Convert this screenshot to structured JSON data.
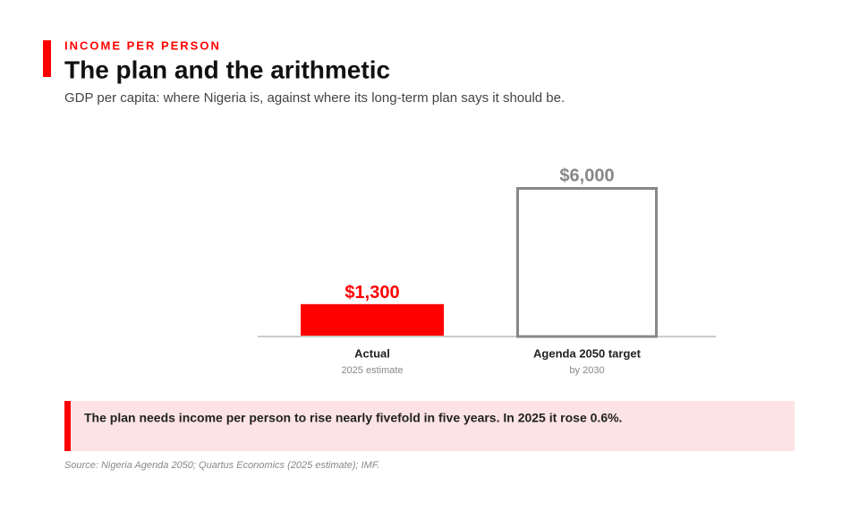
{
  "chart_data": {
    "type": "bar",
    "kicker": "INCOME PER PERSON",
    "title": "The plan and the arithmetic",
    "subtitle": "GDP per capita: where Nigeria is, against where its long-term plan says it should be.",
    "categories": [
      "Actual",
      "Agenda 2050 target"
    ],
    "category_notes": [
      "2025 estimate",
      "by 2030"
    ],
    "values": [
      1300,
      6000
    ],
    "value_labels": [
      "$1,300",
      "$6,000"
    ],
    "colors": [
      "#ff0000",
      "#888888"
    ],
    "styles": [
      "solid",
      "outline"
    ],
    "annotation": "The plan needs income per person to rise nearly fivefold in five years. In 2025 it rose 0.6%.",
    "source": "Source: Nigeria Agenda 2050; Quartus Economics (2025 estimate); IMF."
  }
}
